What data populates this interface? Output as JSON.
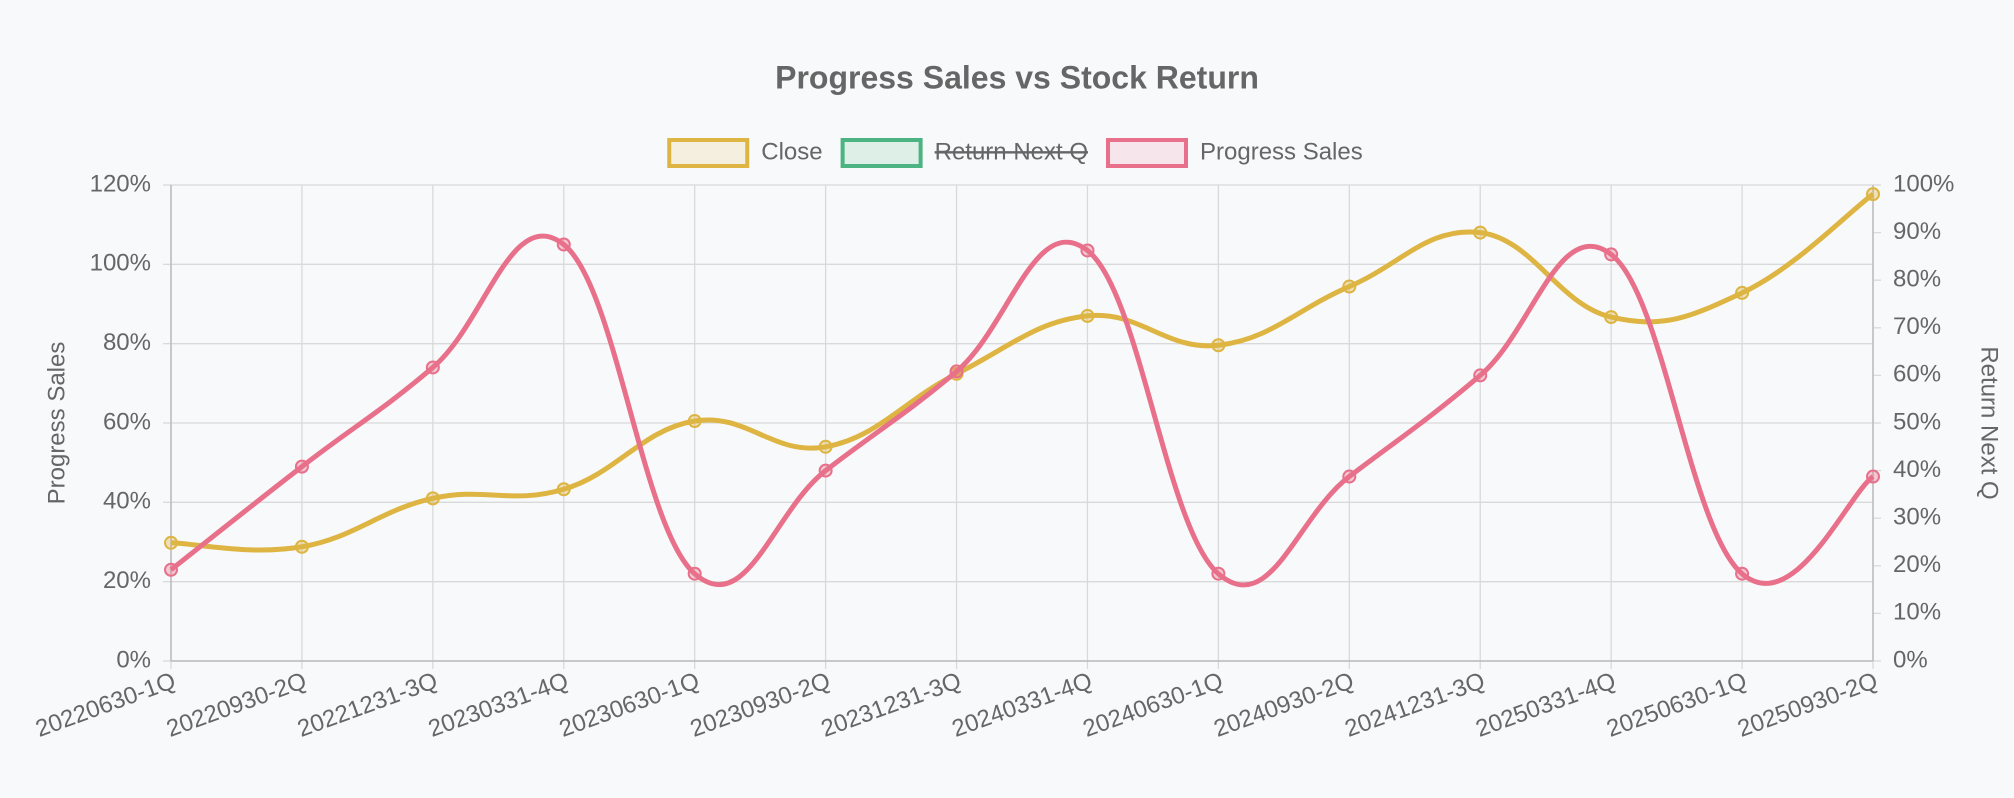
{
  "chart_data": {
    "type": "line",
    "title": "Progress Sales vs Stock Return",
    "categories": [
      "20220630-1Q",
      "20220930-2Q",
      "20221231-3Q",
      "20230331-4Q",
      "20230630-1Q",
      "20230930-2Q",
      "20231231-3Q",
      "20240331-4Q",
      "20240630-1Q",
      "20240930-2Q",
      "20241231-3Q",
      "20250331-4Q",
      "20250630-1Q",
      "20250930-2Q"
    ],
    "series": [
      {
        "name": "Close",
        "color": "#deb542",
        "values": [
          29.8,
          28.8,
          41,
          43.3,
          60.5,
          54,
          72.4,
          87,
          79.6,
          94.4,
          108,
          86.7,
          92.8,
          117.7
        ]
      },
      {
        "name": "Return Next Q",
        "color": "#4bb482",
        "axis": "y2",
        "hidden": true
      },
      {
        "name": "Progress Sales",
        "color": "#e8708a",
        "values": [
          23,
          49,
          74,
          105,
          22,
          48,
          73,
          103.5,
          22,
          46.5,
          72,
          102.5,
          22,
          46.5
        ]
      }
    ],
    "ylabel": "Progress Sales",
    "y2label": "Return Next Q",
    "ylim": [
      0,
      120
    ],
    "yticks": [
      {
        "value": 0,
        "label": "0%"
      },
      {
        "value": 20,
        "label": "20%"
      },
      {
        "value": 40,
        "label": "40%"
      },
      {
        "value": 60,
        "label": "60%"
      },
      {
        "value": 80,
        "label": "80%"
      },
      {
        "value": 100,
        "label": "100%"
      },
      {
        "value": 120,
        "label": "120%"
      }
    ],
    "y2lim": [
      0,
      100
    ],
    "y2ticks": [
      {
        "value": 0,
        "label": "0%"
      },
      {
        "value": 10,
        "label": "10%"
      },
      {
        "value": 20,
        "label": "20%"
      },
      {
        "value": 30,
        "label": "30%"
      },
      {
        "value": 40,
        "label": "40%"
      },
      {
        "value": 50,
        "label": "50%"
      },
      {
        "value": 60,
        "label": "60%"
      },
      {
        "value": 70,
        "label": "70%"
      },
      {
        "value": 80,
        "label": "80%"
      },
      {
        "value": 90,
        "label": "90%"
      },
      {
        "value": 100,
        "label": "100%"
      }
    ],
    "grid": true,
    "legend": "top"
  }
}
